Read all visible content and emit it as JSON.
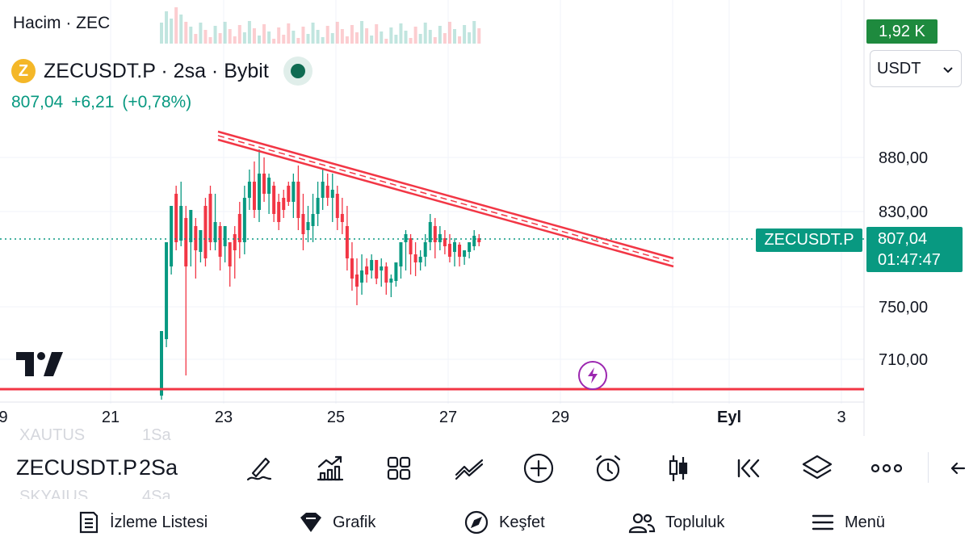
{
  "header": {
    "volume_label": "Hacim · ZEC",
    "volume_value": "1,92 K",
    "symbol_title": "ZECUSDT.P · 2sa · Bybit",
    "coin_letter": "Z",
    "price": "807,04",
    "change": "+6,21",
    "change_pct": "(+0,78%)",
    "currency": "USDT"
  },
  "price_axis": {
    "ticks": [
      "880,00",
      "830,00",
      "750,00",
      "710,00"
    ],
    "current_symbol": "ZECUSDT.P",
    "current_price": "807,04",
    "countdown": "01:47:47"
  },
  "time_axis": {
    "ticks": [
      "9",
      "21",
      "23",
      "25",
      "27",
      "29",
      "Eyl",
      "3"
    ]
  },
  "chart_data": {
    "type": "candlestick",
    "symbol": "ZECUSDT.P",
    "interval": "2sa",
    "exchange": "Bybit",
    "y_ticks": [
      880,
      830,
      750,
      710
    ],
    "x_ticks": [
      "9",
      "21",
      "23",
      "25",
      "27",
      "29",
      "Eyl",
      "3"
    ],
    "last_price": 807.04,
    "trendline": {
      "from_price": 895,
      "to_price": 797,
      "color": "#f23645"
    },
    "horizontal_line": {
      "price": 690,
      "color": "#f23645"
    },
    "up_color": "#089981",
    "down_color": "#f23645"
  },
  "toolbar": {
    "symbol": "ZECUSDT.P",
    "interval": "2Sa",
    "ghost_above": [
      "XAUTUS",
      "1Sa"
    ],
    "ghost_below": [
      "SKYAIUS",
      "4Sa"
    ],
    "tools": [
      "drawing-icon",
      "indicators-icon",
      "layouts-icon",
      "compare-icon",
      "add-icon",
      "alert-icon",
      "candles-icon",
      "replay-icon",
      "layers-icon",
      "more-icon"
    ]
  },
  "nav": {
    "items": [
      {
        "label": "İzleme Listesi",
        "icon": "list-icon"
      },
      {
        "label": "Grafik",
        "icon": "chart-icon"
      },
      {
        "label": "Keşfet",
        "icon": "compass-icon"
      },
      {
        "label": "Topluluk",
        "icon": "community-icon"
      },
      {
        "label": "Menü",
        "icon": "menu-icon"
      }
    ]
  },
  "colors": {
    "up": "#089981",
    "down": "#f23645",
    "volume_badge": "#1e8a3e",
    "coin": "#f4b728"
  }
}
